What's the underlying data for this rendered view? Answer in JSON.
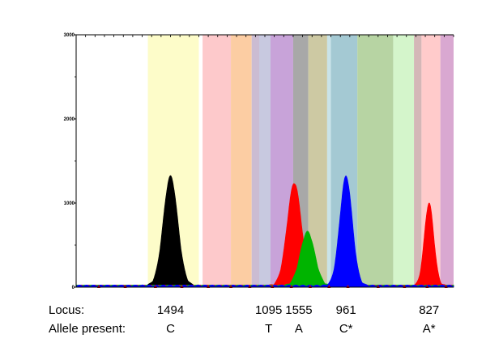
{
  "chart_data": {
    "type": "area",
    "title": "",
    "xlabel": "",
    "ylabel": "",
    "ylim": [
      0,
      3000
    ],
    "y_ticks": [
      {
        "value": 0,
        "label": "0"
      },
      {
        "value": 1000,
        "label": "1000"
      },
      {
        "value": 2000,
        "label": "2000"
      },
      {
        "value": 3000,
        "label": "3000"
      }
    ],
    "xlim": [
      0,
      100
    ],
    "grid": false,
    "bands": [
      {
        "x0": 19.0,
        "x1": 32.5,
        "color": "#fdfcc9"
      },
      {
        "x0": 33.5,
        "x1": 41.0,
        "color": "#fdc9cb"
      },
      {
        "x0": 41.0,
        "x1": 46.5,
        "color": "#fccda3"
      },
      {
        "x0": 46.5,
        "x1": 48.5,
        "color": "#cbbcd2"
      },
      {
        "x0": 48.5,
        "x1": 51.5,
        "color": "#c8c9e0"
      },
      {
        "x0": 51.5,
        "x1": 57.5,
        "color": "#c8a3d9"
      },
      {
        "x0": 57.5,
        "x1": 61.5,
        "color": "#a8a8a8"
      },
      {
        "x0": 61.5,
        "x1": 66.5,
        "color": "#cdc9a3"
      },
      {
        "x0": 66.5,
        "x1": 67.5,
        "color": "#c9e3e9"
      },
      {
        "x0": 67.5,
        "x1": 74.5,
        "color": "#a4c9d3"
      },
      {
        "x0": 74.5,
        "x1": 84.0,
        "color": "#b7d4a3"
      },
      {
        "x0": 84.0,
        "x1": 89.5,
        "color": "#d4f5cb"
      },
      {
        "x0": 89.5,
        "x1": 91.5,
        "color": "#d4b7b7"
      },
      {
        "x0": 91.5,
        "x1": 96.5,
        "color": "#ffcbcb"
      },
      {
        "x0": 96.5,
        "x1": 100.0,
        "color": "#d9a8d1"
      }
    ],
    "series": [
      {
        "color": "#000000",
        "peaks": [
          {
            "center": 25.0,
            "height": 1300,
            "width": 1.9
          }
        ]
      },
      {
        "color": "#ff0000",
        "peaks": [
          {
            "center": 57.8,
            "height": 1220,
            "width": 1.9
          },
          {
            "center": 93.5,
            "height": 980,
            "width": 1.25
          }
        ]
      },
      {
        "color": "#00b400",
        "peaks": [
          {
            "center": 61.3,
            "height": 640,
            "width": 1.9
          }
        ]
      },
      {
        "color": "#0000ff",
        "peaks": [
          {
            "center": 71.5,
            "height": 1300,
            "width": 1.65
          }
        ]
      }
    ],
    "markers_x": [
      6,
      13,
      21,
      28,
      35,
      41,
      46,
      52,
      57,
      62,
      67,
      72,
      80,
      87,
      93,
      98
    ]
  },
  "rows": [
    {
      "label": "Locus:",
      "cells": [
        {
          "x": 25.0,
          "text": "1494"
        },
        {
          "x": 51.0,
          "text": "1095"
        },
        {
          "x": 59.0,
          "text": "1555"
        },
        {
          "x": 71.5,
          "text": "961"
        },
        {
          "x": 93.5,
          "text": "827"
        }
      ]
    },
    {
      "label": "Allele present:",
      "cells": [
        {
          "x": 25.0,
          "text": "C"
        },
        {
          "x": 51.0,
          "text": "T"
        },
        {
          "x": 59.0,
          "text": "A"
        },
        {
          "x": 71.5,
          "text": "C*"
        },
        {
          "x": 93.5,
          "text": "A*"
        }
      ]
    }
  ]
}
